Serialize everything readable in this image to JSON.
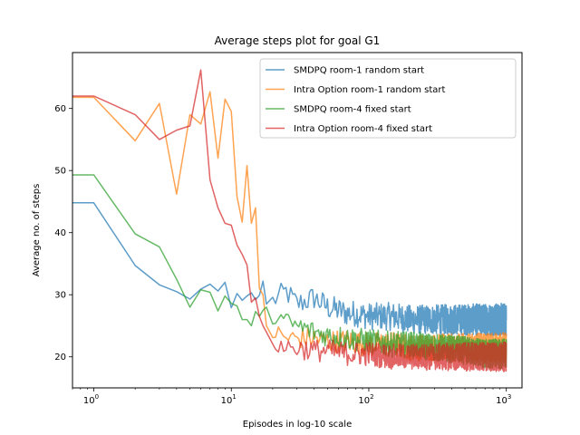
{
  "chart_data": {
    "type": "line",
    "title": "Average steps plot for goal G1",
    "xlabel": "Episodes in log-10 scale",
    "ylabel": "Average no. of steps",
    "xscale": "log",
    "xlim": [
      0.7,
      1300
    ],
    "ylim": [
      15,
      69
    ],
    "xticks": [
      {
        "value": 1,
        "base": "10",
        "exp": "0"
      },
      {
        "value": 10,
        "base": "10",
        "exp": "1"
      },
      {
        "value": 100,
        "base": "10",
        "exp": "2"
      },
      {
        "value": 1000,
        "base": "10",
        "exp": "3"
      }
    ],
    "yticks": [
      20,
      30,
      40,
      50,
      60
    ],
    "legend_position": "top-right",
    "series": [
      {
        "name": "SMDPQ room-1 random start",
        "color": "#1f77b4",
        "x": [
          0.7,
          1,
          2,
          3,
          4,
          5,
          6,
          7,
          8,
          9,
          10,
          11,
          12,
          13,
          14,
          15,
          16,
          17,
          18,
          20,
          25,
          30,
          40,
          50,
          60,
          70,
          80,
          100,
          150,
          200,
          300,
          500,
          700,
          1000
        ],
        "y": [
          44.8,
          44.8,
          34.7,
          31.6,
          30.5,
          29.3,
          30.9,
          31.7,
          30.6,
          32.0,
          27.9,
          30.2,
          29.1,
          29.8,
          30.3,
          29.2,
          29.9,
          32.2,
          28.5,
          29.0,
          30.5,
          28.5,
          29.5,
          28.0,
          27.5,
          27.0,
          27.0,
          26.5,
          26.5,
          26.0,
          26.0,
          26.0,
          26.0,
          26.0
        ],
        "noise": 2.2,
        "noise_start": 20
      },
      {
        "name": "Intra Option room-1 random start",
        "color": "#ff7f0e",
        "x": [
          0.7,
          1,
          2,
          3,
          4,
          5,
          6,
          7,
          8,
          9,
          10,
          11,
          12,
          13,
          14,
          15,
          16,
          17,
          18,
          20,
          25,
          30,
          40,
          50,
          70,
          100,
          150,
          200,
          300,
          500,
          700,
          1000
        ],
        "y": [
          61.8,
          61.8,
          54.8,
          60.8,
          46.2,
          59.0,
          57.5,
          62.7,
          52.0,
          61.5,
          59.5,
          45.8,
          41.7,
          50.8,
          41.5,
          44.0,
          31.0,
          30.0,
          25.0,
          24.0,
          23.0,
          23.0,
          23.0,
          22.5,
          22.5,
          22.0,
          22.0,
          21.5,
          21.5,
          21.5,
          21.5,
          21.5
        ],
        "noise": 2.0,
        "noise_start": 20
      },
      {
        "name": "SMDPQ room-4 fixed start",
        "color": "#2ca02c",
        "x": [
          0.7,
          1,
          2,
          3,
          4,
          5,
          6,
          7,
          8,
          9,
          10,
          11,
          12,
          13,
          14,
          15,
          16,
          17,
          18,
          20,
          25,
          30,
          40,
          50,
          70,
          100,
          150,
          200,
          300,
          500,
          700,
          1000
        ],
        "y": [
          49.3,
          49.3,
          39.8,
          37.7,
          32.5,
          28.0,
          30.8,
          30.4,
          27.4,
          29.8,
          28.6,
          28.2,
          26.0,
          26.0,
          25.0,
          27.3,
          26.5,
          27.5,
          28.0,
          27.0,
          25.5,
          25.0,
          24.0,
          23.5,
          23.0,
          22.5,
          22.0,
          22.0,
          21.5,
          21.0,
          20.5,
          20.5
        ],
        "noise": 2.0,
        "noise_start": 20
      },
      {
        "name": "Intra Option room-4 fixed start",
        "color": "#d62728",
        "x": [
          0.7,
          1,
          2,
          3,
          4,
          5,
          6,
          7,
          8,
          9,
          10,
          11,
          12,
          13,
          14,
          15,
          16,
          17,
          18,
          20,
          25,
          30,
          40,
          50,
          70,
          100,
          150,
          200,
          300,
          500,
          700,
          1000
        ],
        "y": [
          62.0,
          62.0,
          59.0,
          55.0,
          56.5,
          57.2,
          66.2,
          48.5,
          44.0,
          41.5,
          41.2,
          38.0,
          36.5,
          34.8,
          28.8,
          29.5,
          26.5,
          25.0,
          24.0,
          22.5,
          21.5,
          21.5,
          21.0,
          21.0,
          20.5,
          20.5,
          20.0,
          20.0,
          20.0,
          20.0,
          20.0,
          20.0
        ],
        "noise": 2.0,
        "noise_start": 20
      }
    ]
  }
}
